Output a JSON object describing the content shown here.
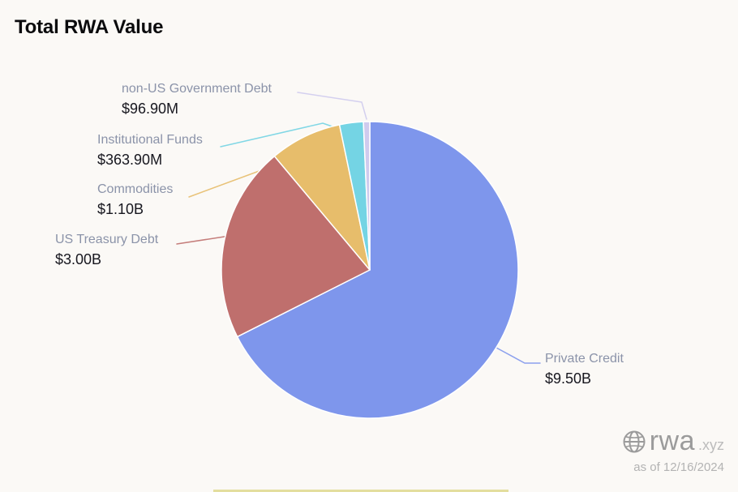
{
  "chart_data": {
    "type": "pie",
    "title": "Total RWA Value",
    "values_in": "USD",
    "start_angle": "top",
    "direction": "clockwise",
    "legend_position": "none",
    "slices": [
      {
        "label": "Private Credit",
        "value_display": "$9.50B",
        "value_billions": 9.5,
        "color": "#7e96ec"
      },
      {
        "label": "US Treasury Debt",
        "value_display": "$3.00B",
        "value_billions": 3.0,
        "color": "#bf6f6d"
      },
      {
        "label": "Commodities",
        "value_display": "$1.10B",
        "value_billions": 1.1,
        "color": "#e7bd6b"
      },
      {
        "label": "Institutional Funds",
        "value_display": "$363.90M",
        "value_billions": 0.3639,
        "color": "#74d4e4"
      },
      {
        "label": "non-US Government Debt",
        "value_display": "$96.90M",
        "value_billions": 0.0969,
        "color": "#cfcbee"
      }
    ]
  },
  "watermark": {
    "brand": "rwa",
    "suffix": ".xyz",
    "as_of": "as of 12/16/2024"
  }
}
